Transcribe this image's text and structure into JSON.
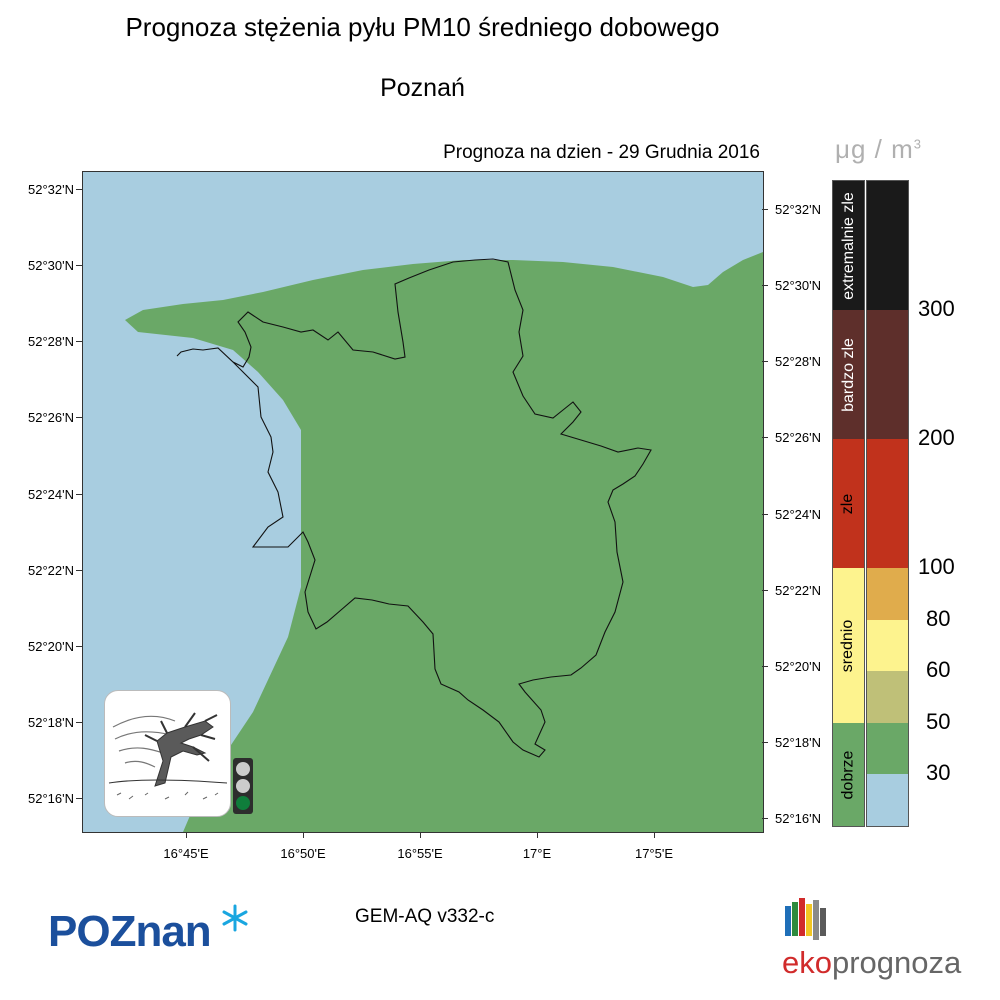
{
  "header": {
    "title": "Prognoza stężenia pyłu PM10 średniego dobowego",
    "city": "Poznań",
    "forecast_date": "Prognoza na dzien -  29 Grudnia 2016"
  },
  "map": {
    "water_color": "#a8cde0",
    "land_color": "#6aa867",
    "lat_labels_left": [
      "52°32'N",
      "52°30'N",
      "52°28'N",
      "52°26'N",
      "52°24'N",
      "52°22'N",
      "52°20'N",
      "52°18'N",
      "52°16'N"
    ],
    "lat_labels_right": [
      "52°32'N",
      "52°30'N",
      "52°28'N",
      "52°26'N",
      "52°24'N",
      "52°22'N",
      "52°20'N",
      "52°18'N",
      "52°16'N"
    ],
    "lon_labels": [
      "16°45'E",
      "16°50'E",
      "16°55'E",
      "17°E",
      "17°5'E"
    ]
  },
  "legend": {
    "unit": "μg / m",
    "unit_exp": "3",
    "categories": [
      {
        "label": "extremalnie zle",
        "color": "#1a1a1a",
        "text_color": "#ffffff"
      },
      {
        "label": "bardzo zle",
        "color": "#5e2f2b",
        "text_color": "#ffffff"
      },
      {
        "label": "zle",
        "color": "#c1321c",
        "text_color": "#000000"
      },
      {
        "label": "srednio",
        "color": "#fdf38e",
        "text_color": "#000000"
      },
      {
        "label": "dobrze",
        "color": "#6aa867",
        "text_color": "#000000"
      }
    ],
    "scale_colors": [
      "#1a1a1a",
      "#5e2f2b",
      "#c1321c",
      "#e0ac4c",
      "#fdf38e",
      "#bfc078",
      "#6aa867",
      "#a8cde0"
    ],
    "scale_labels": [
      "300",
      "200",
      "100",
      "80",
      "60",
      "50",
      "30"
    ]
  },
  "status_light": {
    "colors": [
      "#cccccc",
      "#cccccc",
      "#0f7d3b"
    ]
  },
  "footer": {
    "model": "GEM-AQ v332-c",
    "poznan_logo": "POZnan",
    "eko_prefix": "eko",
    "eko_suffix": "prognoza"
  }
}
